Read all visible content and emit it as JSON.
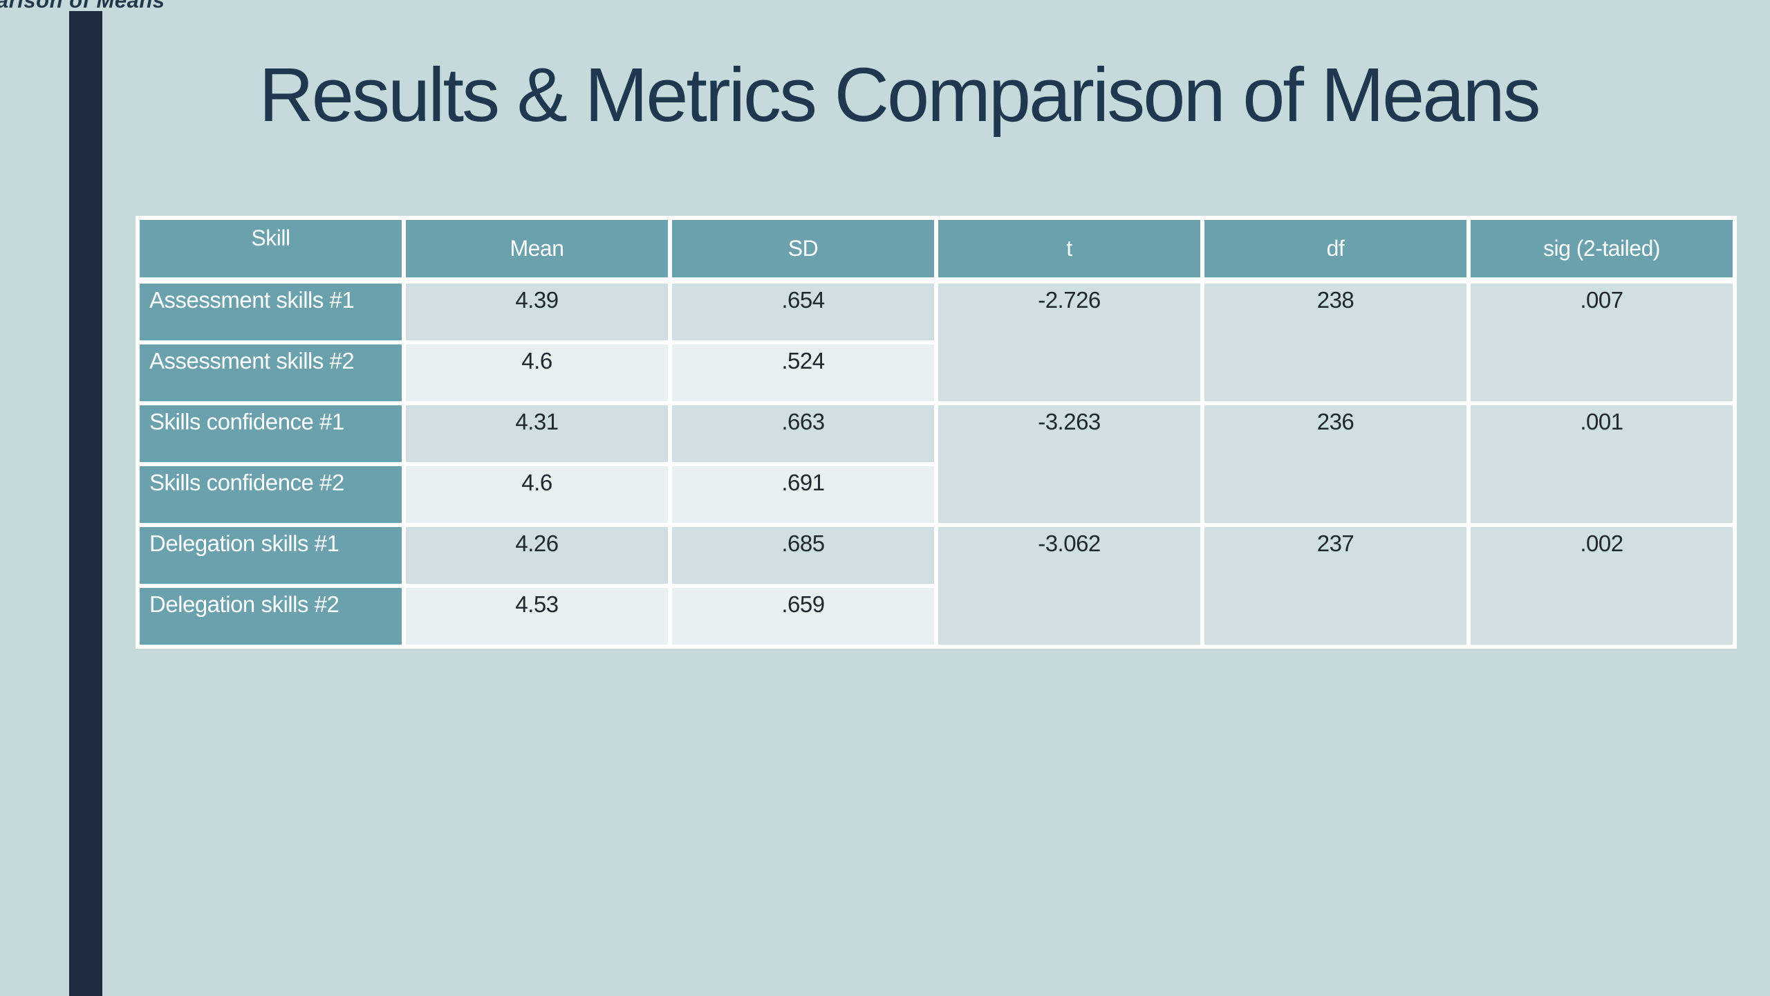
{
  "slide": {
    "cutoff_text": "arison of Means",
    "title": "Results & Metrics Comparison of Means"
  },
  "table": {
    "headers": [
      "Skill",
      "Mean",
      "SD",
      "t",
      "df",
      "sig (2-tailed)"
    ],
    "groups": [
      {
        "rows": [
          {
            "skill": "Assessment skills #1",
            "mean": "4.39",
            "sd": ".654"
          },
          {
            "skill": "Assessment skills #2",
            "mean": "4.6",
            "sd": ".524"
          }
        ],
        "t": "-2.726",
        "df": "238",
        "sig": ".007"
      },
      {
        "rows": [
          {
            "skill": "Skills confidence #1",
            "mean": "4.31",
            "sd": ".663"
          },
          {
            "skill": "Skills confidence #2",
            "mean": "4.6",
            "sd": ".691"
          }
        ],
        "t": "-3.263",
        "df": "236",
        "sig": ".001"
      },
      {
        "rows": [
          {
            "skill": "Delegation skills #1",
            "mean": "4.26",
            "sd": ".685"
          },
          {
            "skill": "Delegation skills #2",
            "mean": "4.53",
            "sd": ".659"
          }
        ],
        "t": "-3.062",
        "df": "237",
        "sig": ".002"
      }
    ]
  },
  "colors": {
    "bg": "#c6d9db",
    "bar": "#1d2c3e",
    "title": "#1f3850",
    "teal": "#6aa1ac",
    "row-odd": "#cfdfe2",
    "row-even": "#e9f0f0",
    "num": "#20272e",
    "grid": "#ffffff"
  }
}
